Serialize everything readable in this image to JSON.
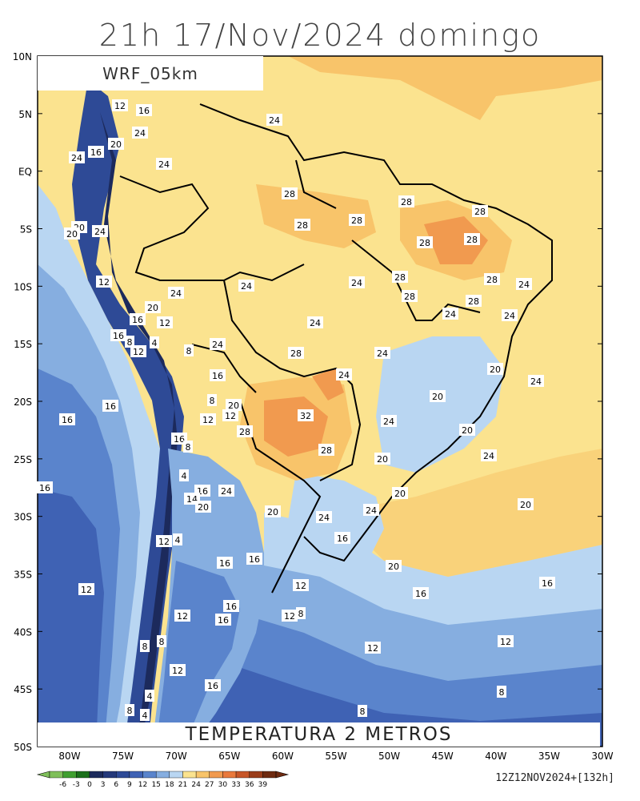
{
  "title": "21h 17/Nov/2024 domingo",
  "model": "WRF_05km",
  "variable": "TEMPERATURA 2 METROS",
  "run_stamp": "12Z12NOV2024+[132h]",
  "lat_labels": [
    "10N",
    "5N",
    "EQ",
    "5S",
    "10S",
    "15S",
    "20S",
    "25S",
    "30S",
    "35S",
    "40S",
    "45S",
    "50S"
  ],
  "lon_labels": [
    "80W",
    "75W",
    "70W",
    "65W",
    "60W",
    "55W",
    "50W",
    "45W",
    "40W",
    "35W",
    "30W"
  ],
  "colorbar": {
    "labels": [
      "-6",
      "-3",
      "0",
      "3",
      "6",
      "9",
      "12",
      "15",
      "18",
      "21",
      "24",
      "27",
      "30",
      "33",
      "36",
      "39"
    ],
    "colors": [
      "#7fbf5a",
      "#3f9f2f",
      "#1a6f1a",
      "#1c2a5c",
      "#24387a",
      "#2e4a96",
      "#3f62b4",
      "#5a84cc",
      "#86aee0",
      "#b9d6f2",
      "#fbe38f",
      "#f8c46a",
      "#f19a4f",
      "#e9793c",
      "#c75628",
      "#9a3d1a",
      "#6e2a10"
    ]
  },
  "contour_labels": [
    "12",
    "16",
    "20",
    "24",
    "28",
    "32",
    "8",
    "4"
  ]
}
